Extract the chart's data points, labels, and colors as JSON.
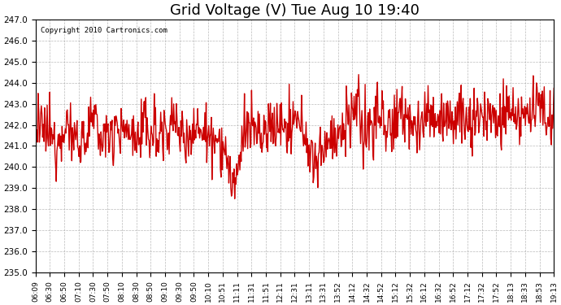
{
  "title": "Grid Voltage (V) Tue Aug 10 19:40",
  "copyright": "Copyright 2010 Cartronics.com",
  "line_color": "#cc0000",
  "bg_color": "#ffffff",
  "plot_bg_color": "#ffffff",
  "grid_color": "#aaaaaa",
  "grid_style": "--",
  "ylim": [
    235.0,
    247.0
  ],
  "yticks": [
    235.0,
    236.0,
    237.0,
    238.0,
    239.0,
    240.0,
    241.0,
    242.0,
    243.0,
    244.0,
    245.0,
    246.0,
    247.0
  ],
  "xtick_labels": [
    "06:09",
    "06:30",
    "06:50",
    "07:10",
    "07:30",
    "07:50",
    "08:10",
    "08:30",
    "08:50",
    "09:10",
    "09:30",
    "09:50",
    "10:10",
    "10:51",
    "11:11",
    "11:31",
    "11:51",
    "12:11",
    "12:31",
    "13:11",
    "13:31",
    "13:52",
    "14:12",
    "14:32",
    "14:52",
    "15:12",
    "15:32",
    "16:12",
    "16:32",
    "16:52",
    "17:12",
    "17:32",
    "17:52",
    "18:13",
    "18:33",
    "18:53",
    "19:13"
  ],
  "line_width": 1.0,
  "title_fontsize": 13
}
